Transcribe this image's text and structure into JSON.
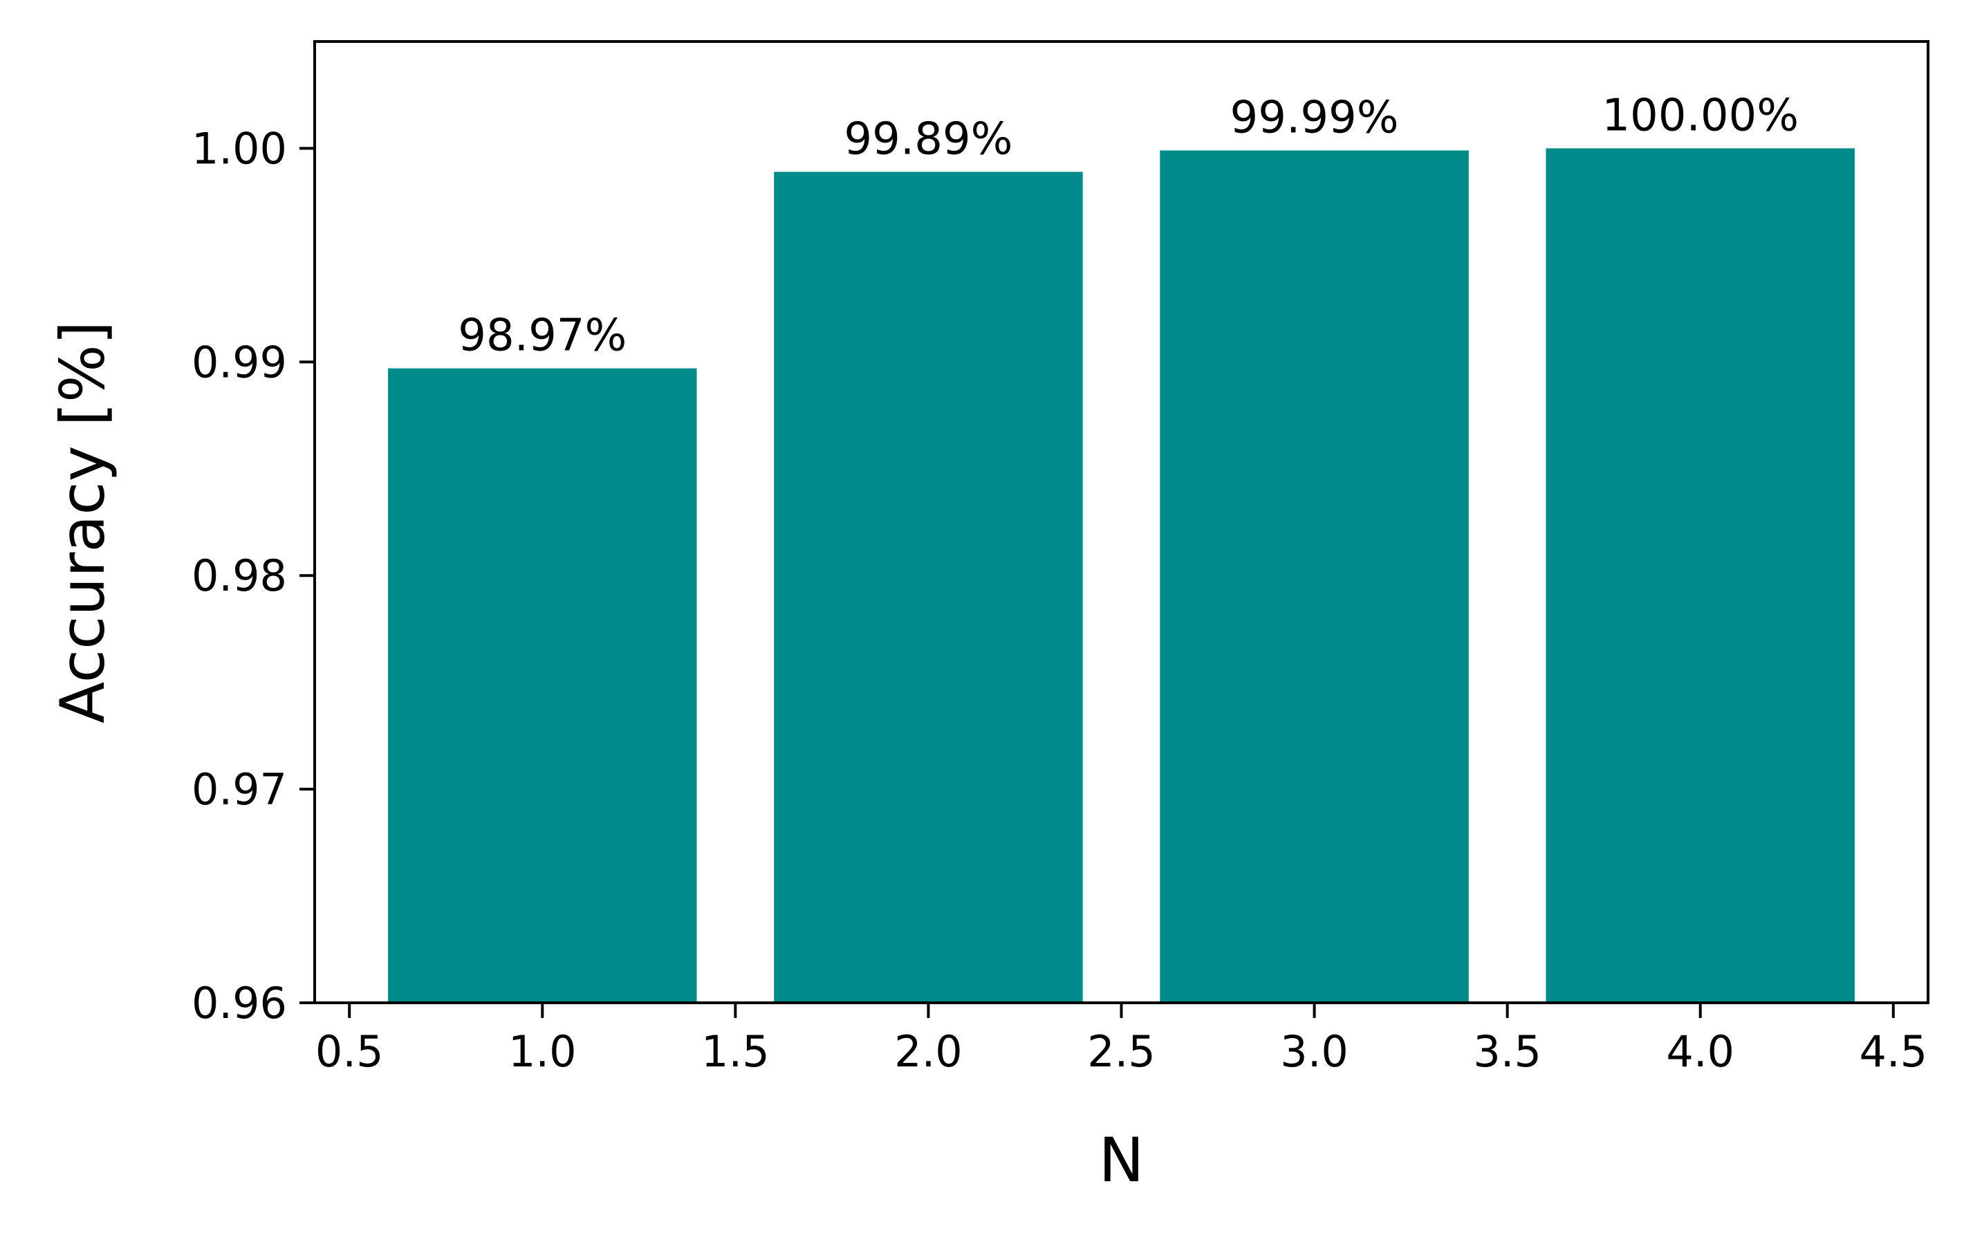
{
  "chart_data": {
    "type": "bar",
    "x": [
      1,
      2,
      3,
      4
    ],
    "values": [
      0.9897,
      0.9989,
      0.9999,
      1.0
    ],
    "data_labels": [
      "98.97%",
      "99.89%",
      "99.99%",
      "100.00%"
    ],
    "bar_width": 0.8,
    "color": "#008b8b",
    "xlabel": "N",
    "ylabel": "Accuracy [%]",
    "xlim": [
      0.41,
      4.59
    ],
    "ylim": [
      0.96,
      1.005
    ],
    "xticks": [
      0.5,
      1.0,
      1.5,
      2.0,
      2.5,
      3.0,
      3.5,
      4.0,
      4.5
    ],
    "xtick_labels": [
      "0.5",
      "1.0",
      "1.5",
      "2.0",
      "2.5",
      "3.0",
      "3.5",
      "4.0",
      "4.5"
    ],
    "yticks": [
      0.96,
      0.97,
      0.98,
      0.99,
      1.0
    ],
    "ytick_labels": [
      "0.96",
      "0.97",
      "0.98",
      "0.99",
      "1.00"
    ],
    "grid": false,
    "legend": "none"
  }
}
